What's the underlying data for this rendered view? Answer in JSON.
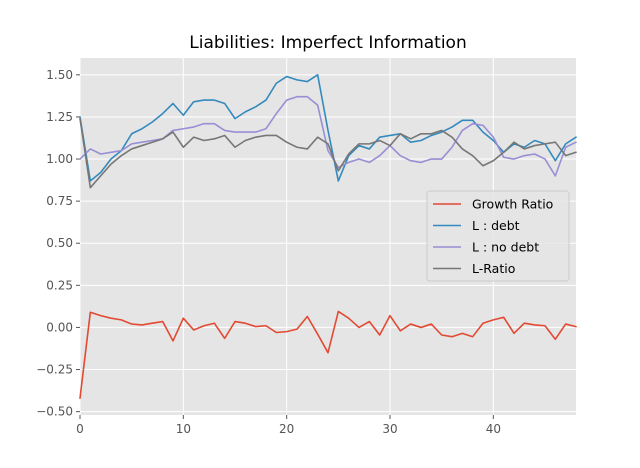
{
  "chart_data": {
    "type": "line",
    "title": "Liabilities: Imperfect Information",
    "xlabel": "",
    "ylabel": "",
    "xlim": [
      0,
      48
    ],
    "ylim": [
      -0.52,
      1.6
    ],
    "xticks": [
      0,
      10,
      20,
      30,
      40
    ],
    "yticks": [
      -0.5,
      -0.25,
      0.0,
      0.25,
      0.5,
      0.75,
      1.0,
      1.25,
      1.5
    ],
    "xtick_labels": [
      "0",
      "10",
      "20",
      "30",
      "40"
    ],
    "ytick_labels": [
      "−0.50",
      "−0.25",
      "0.00",
      "0.25",
      "0.50",
      "0.75",
      "1.00",
      "1.25",
      "1.50"
    ],
    "grid": true,
    "legend_position": "center-right",
    "x": [
      0,
      1,
      2,
      3,
      4,
      5,
      6,
      7,
      8,
      9,
      10,
      11,
      12,
      13,
      14,
      15,
      16,
      17,
      18,
      19,
      20,
      21,
      22,
      23,
      24,
      25,
      26,
      27,
      28,
      29,
      30,
      31,
      32,
      33,
      34,
      35,
      36,
      37,
      38,
      39,
      40,
      41,
      42,
      43,
      44,
      45,
      46,
      47,
      48
    ],
    "series": [
      {
        "name": "Growth Ratio",
        "color": "#E24A33",
        "values": [
          -0.42,
          0.09,
          0.07,
          0.055,
          0.045,
          0.02,
          0.015,
          0.025,
          0.035,
          -0.08,
          0.055,
          -0.015,
          0.01,
          0.025,
          -0.065,
          0.035,
          0.025,
          0.005,
          0.01,
          -0.03,
          -0.025,
          -0.01,
          0.065,
          -0.04,
          -0.15,
          0.095,
          0.055,
          0.0,
          0.035,
          -0.045,
          0.07,
          -0.02,
          0.02,
          0.0,
          0.02,
          -0.045,
          -0.055,
          -0.035,
          -0.055,
          0.025,
          0.045,
          0.06,
          -0.035,
          0.025,
          0.015,
          0.01,
          -0.07,
          0.02,
          0.005
        ]
      },
      {
        "name": "L : debt",
        "color": "#348ABD",
        "values": [
          1.25,
          0.87,
          0.92,
          1.0,
          1.05,
          1.15,
          1.18,
          1.22,
          1.27,
          1.33,
          1.26,
          1.34,
          1.35,
          1.35,
          1.33,
          1.24,
          1.28,
          1.31,
          1.35,
          1.45,
          1.49,
          1.47,
          1.46,
          1.5,
          1.17,
          0.87,
          1.02,
          1.08,
          1.06,
          1.13,
          1.14,
          1.15,
          1.1,
          1.11,
          1.14,
          1.16,
          1.19,
          1.23,
          1.23,
          1.16,
          1.11,
          1.04,
          1.09,
          1.07,
          1.11,
          1.09,
          0.99,
          1.09,
          1.13
        ]
      },
      {
        "name": "L : no debt",
        "color": "#988ED5",
        "values": [
          1.0,
          1.06,
          1.03,
          1.04,
          1.05,
          1.09,
          1.1,
          1.11,
          1.12,
          1.17,
          1.18,
          1.19,
          1.21,
          1.21,
          1.17,
          1.16,
          1.16,
          1.16,
          1.18,
          1.27,
          1.35,
          1.37,
          1.37,
          1.32,
          1.05,
          0.95,
          0.98,
          1.0,
          0.98,
          1.02,
          1.08,
          1.02,
          0.99,
          0.98,
          1.0,
          1.0,
          1.07,
          1.17,
          1.21,
          1.2,
          1.13,
          1.01,
          1.0,
          1.02,
          1.03,
          1.0,
          0.9,
          1.07,
          1.1
        ]
      },
      {
        "name": "L-Ratio",
        "color": "#777777",
        "values": [
          1.24,
          0.83,
          0.9,
          0.97,
          1.02,
          1.06,
          1.08,
          1.1,
          1.12,
          1.16,
          1.07,
          1.13,
          1.11,
          1.12,
          1.14,
          1.07,
          1.11,
          1.13,
          1.14,
          1.14,
          1.1,
          1.07,
          1.06,
          1.13,
          1.09,
          0.93,
          1.03,
          1.09,
          1.09,
          1.11,
          1.08,
          1.15,
          1.12,
          1.15,
          1.15,
          1.17,
          1.13,
          1.06,
          1.02,
          0.96,
          0.99,
          1.04,
          1.1,
          1.06,
          1.08,
          1.09,
          1.1,
          1.02,
          1.04
        ]
      }
    ]
  }
}
